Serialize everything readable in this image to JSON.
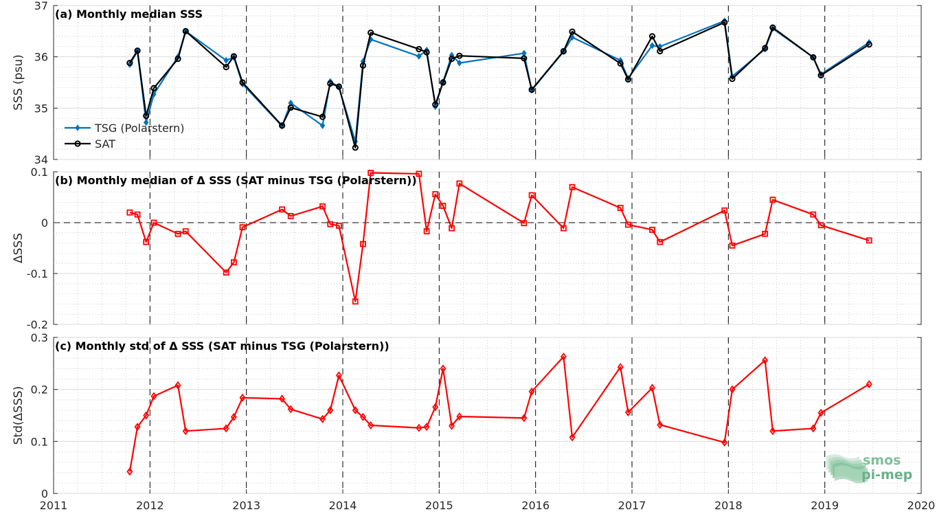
{
  "colors": {
    "tsg": "#0072bd",
    "sat": "#000000",
    "delta": "#ff0000",
    "logo": "#7fbf9a"
  },
  "logo": {
    "line1": "smos",
    "line2": "pi-mep"
  },
  "x_axis": {
    "range": [
      2011,
      2020
    ],
    "tick_labels": [
      "2011",
      "2012",
      "2013",
      "2014",
      "2015",
      "2016",
      "2017",
      "2018",
      "2019",
      "2020"
    ]
  },
  "chart_data": [
    {
      "type": "line",
      "title": "(a) Monthly median SSS",
      "ylabel": "SSS (psu)",
      "ylim": [
        34,
        37
      ],
      "yticks": [
        34,
        35,
        36,
        37
      ],
      "ytick_labels": [
        "34",
        "35",
        "36",
        "37"
      ],
      "grid": true,
      "legend": "bottom-left",
      "series": [
        {
          "name": "TSG (Polarstern)",
          "marker": "diamond",
          "x": [
            2011.79,
            2011.87,
            2011.96,
            2012.04,
            2012.29,
            2012.37,
            2012.79,
            2012.87,
            2012.96,
            2013.37,
            2013.46,
            2013.79,
            2013.87,
            2013.96,
            2014.13,
            2014.21,
            2014.29,
            2014.79,
            2014.87,
            2014.96,
            2015.04,
            2015.13,
            2015.21,
            2015.88,
            2015.96,
            2016.29,
            2016.38,
            2016.88,
            2016.96,
            2017.21,
            2017.29,
            2017.96,
            2018.04,
            2018.38,
            2018.46,
            2018.88,
            2018.96,
            2019.46
          ],
          "y": [
            35.85,
            36.11,
            34.72,
            35.27,
            36.0,
            36.5,
            35.93,
            35.99,
            35.47,
            34.65,
            35.1,
            34.66,
            35.52,
            35.41,
            34.35,
            35.91,
            36.34,
            36.01,
            36.13,
            35.03,
            35.51,
            36.03,
            35.88,
            36.07,
            35.35,
            36.1,
            36.38,
            35.93,
            35.58,
            36.22,
            36.2,
            36.7,
            35.62,
            36.15,
            36.55,
            35.99,
            35.66,
            36.28
          ]
        },
        {
          "name": "SAT",
          "marker": "circle",
          "x": [
            2011.79,
            2011.87,
            2011.96,
            2012.04,
            2012.29,
            2012.37,
            2012.79,
            2012.87,
            2012.96,
            2013.37,
            2013.46,
            2013.79,
            2013.87,
            2013.96,
            2014.13,
            2014.21,
            2014.29,
            2014.79,
            2014.87,
            2014.96,
            2015.04,
            2015.13,
            2015.21,
            2015.88,
            2015.96,
            2016.29,
            2016.38,
            2016.88,
            2016.96,
            2017.21,
            2017.29,
            2017.96,
            2018.04,
            2018.38,
            2018.46,
            2018.88,
            2018.96,
            2019.46
          ],
          "y": [
            35.88,
            36.12,
            34.85,
            35.39,
            35.96,
            36.5,
            35.8,
            36.01,
            35.5,
            34.66,
            35.01,
            34.83,
            35.48,
            35.42,
            34.23,
            35.83,
            36.47,
            36.15,
            36.09,
            35.07,
            35.5,
            35.96,
            36.02,
            35.97,
            35.36,
            36.11,
            36.49,
            35.87,
            35.56,
            36.4,
            36.11,
            36.67,
            35.57,
            36.17,
            36.57,
            35.99,
            35.64,
            36.24
          ]
        }
      ]
    },
    {
      "type": "line",
      "title": "(b) Monthly median of Δ SSS (SAT minus TSG (Polarstern))",
      "ylabel": "ΔSSS",
      "ylim": [
        -0.2,
        0.1
      ],
      "yticks": [
        -0.2,
        -0.1,
        0,
        0.1
      ],
      "ytick_labels": [
        "-0.2",
        "-0.1",
        "0",
        "0.1"
      ],
      "grid": true,
      "reference_line": 0,
      "series": [
        {
          "marker": "square",
          "x": [
            2011.79,
            2011.87,
            2011.96,
            2012.04,
            2012.29,
            2012.37,
            2012.79,
            2012.87,
            2012.96,
            2013.37,
            2013.46,
            2013.79,
            2013.87,
            2013.96,
            2014.13,
            2014.21,
            2014.29,
            2014.79,
            2014.87,
            2014.96,
            2015.04,
            2015.13,
            2015.21,
            2015.88,
            2015.96,
            2016.29,
            2016.38,
            2016.88,
            2016.96,
            2017.21,
            2017.29,
            2017.96,
            2018.04,
            2018.38,
            2018.46,
            2018.88,
            2018.96,
            2019.46
          ],
          "y": [
            0.02,
            0.016,
            -0.038,
            0.0,
            -0.022,
            -0.017,
            -0.098,
            -0.078,
            -0.009,
            0.026,
            0.013,
            0.032,
            -0.003,
            -0.006,
            -0.155,
            -0.042,
            0.098,
            0.096,
            -0.017,
            0.056,
            0.033,
            -0.011,
            0.077,
            -0.001,
            0.054,
            -0.011,
            0.07,
            0.029,
            -0.004,
            -0.014,
            -0.038,
            0.024,
            -0.045,
            -0.022,
            0.045,
            0.016,
            -0.005,
            -0.035
          ]
        }
      ]
    },
    {
      "type": "line",
      "title": "(c) Monthly std of Δ SSS (SAT minus TSG (Polarstern))",
      "ylabel": "Std(ΔSSS)",
      "ylim": [
        0,
        0.3
      ],
      "yticks": [
        0,
        0.1,
        0.2,
        0.3
      ],
      "ytick_labels": [
        "0",
        "0.1",
        "0.2",
        "0.3"
      ],
      "grid": true,
      "series": [
        {
          "marker": "diamond",
          "x": [
            2011.79,
            2011.87,
            2011.96,
            2012.04,
            2012.29,
            2012.37,
            2012.79,
            2012.87,
            2012.96,
            2013.37,
            2013.46,
            2013.79,
            2013.87,
            2013.96,
            2014.13,
            2014.21,
            2014.29,
            2014.79,
            2014.87,
            2014.96,
            2015.04,
            2015.13,
            2015.21,
            2015.88,
            2015.96,
            2016.29,
            2016.38,
            2016.88,
            2016.96,
            2017.21,
            2017.29,
            2017.96,
            2018.04,
            2018.38,
            2018.46,
            2018.88,
            2018.96,
            2019.46
          ],
          "y": [
            0.042,
            0.128,
            0.15,
            0.187,
            0.208,
            0.12,
            0.125,
            0.147,
            0.184,
            0.182,
            0.162,
            0.143,
            0.16,
            0.227,
            0.16,
            0.147,
            0.131,
            0.126,
            0.128,
            0.166,
            0.24,
            0.13,
            0.148,
            0.145,
            0.196,
            0.263,
            0.108,
            0.243,
            0.156,
            0.203,
            0.132,
            0.098,
            0.2,
            0.256,
            0.12,
            0.125,
            0.155,
            0.21
          ]
        }
      ]
    }
  ]
}
